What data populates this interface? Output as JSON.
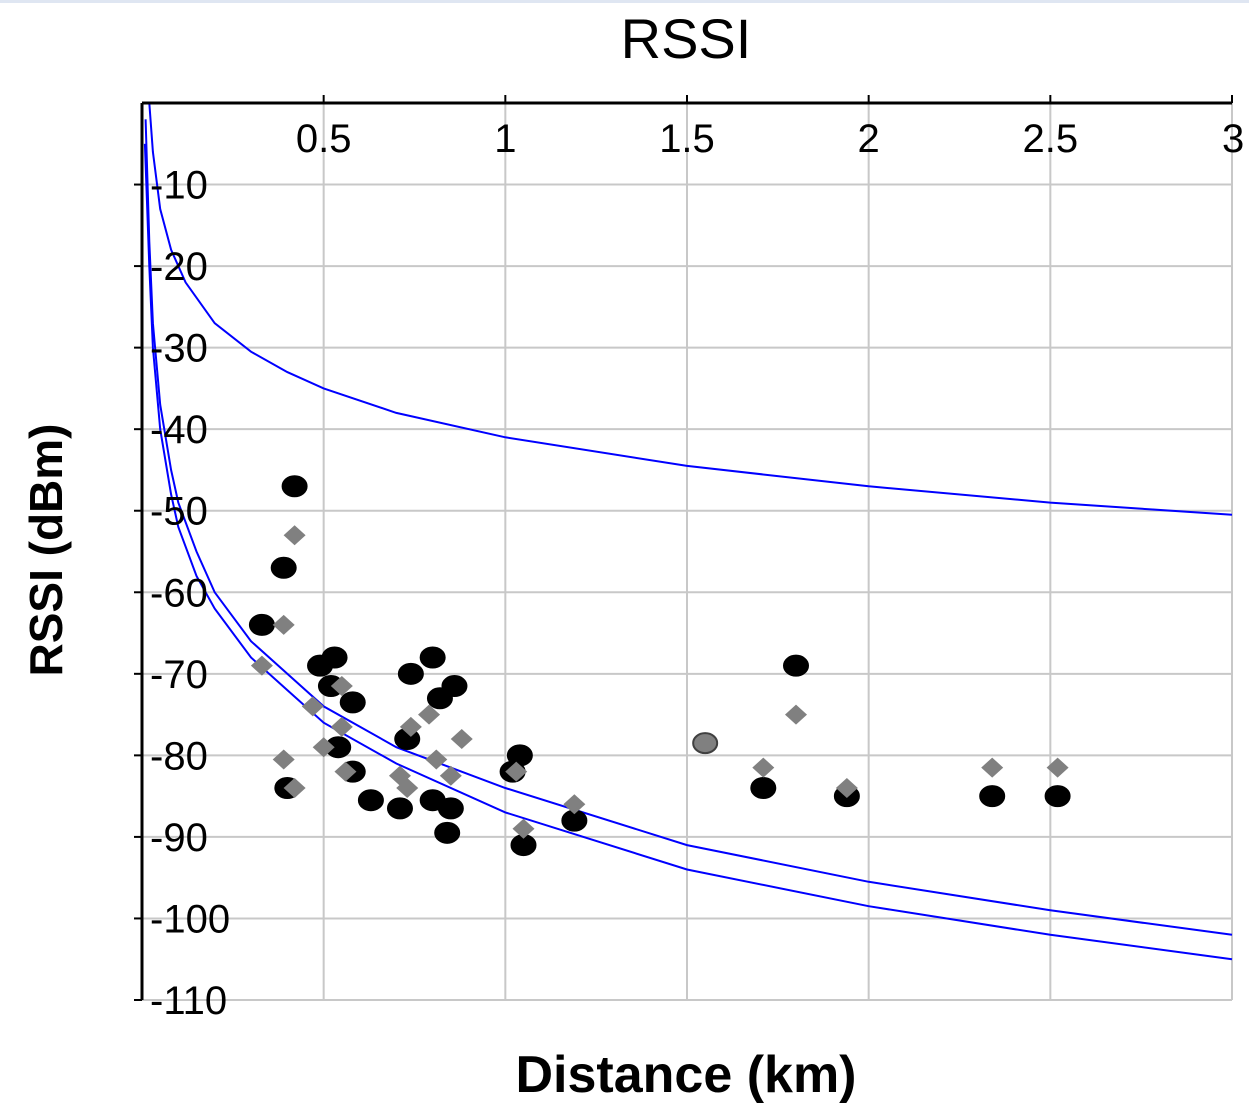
{
  "chart_data": {
    "type": "scatter",
    "title": "RSSI",
    "xlabel": "Distance (km)",
    "ylabel": "RSSI (dBm)",
    "xlim": [
      0,
      3
    ],
    "ylim": [
      -110,
      0
    ],
    "x_ticks": [
      "0.5",
      "1",
      "1.5",
      "2",
      "2.5",
      "3"
    ],
    "y_ticks": [
      "-10",
      "-20",
      "-30",
      "-40",
      "-50",
      "-60",
      "-70",
      "-80",
      "-90",
      "-100",
      "-110"
    ],
    "x_axis_position": "top",
    "grid": true,
    "colors": {
      "measured_a": "#000000",
      "measured_b": "#808080",
      "curves": "#0000ff",
      "grid": "#c8c8c8"
    },
    "series": [
      {
        "marker": "circle",
        "color": "#000000",
        "points": [
          [
            0.42,
            -47
          ],
          [
            0.39,
            -57
          ],
          [
            0.33,
            -64
          ],
          [
            0.53,
            -68
          ],
          [
            0.49,
            -69
          ],
          [
            0.52,
            -71.5
          ],
          [
            0.58,
            -73.5
          ],
          [
            0.74,
            -70
          ],
          [
            0.8,
            -68
          ],
          [
            0.82,
            -73
          ],
          [
            0.86,
            -71.5
          ],
          [
            0.73,
            -78
          ],
          [
            0.54,
            -79
          ],
          [
            0.58,
            -82
          ],
          [
            0.63,
            -85.5
          ],
          [
            0.71,
            -86.5
          ],
          [
            0.8,
            -85.5
          ],
          [
            0.85,
            -86.5
          ],
          [
            0.84,
            -89.5
          ],
          [
            0.4,
            -84
          ],
          [
            1.04,
            -80
          ],
          [
            1.02,
            -82
          ],
          [
            1.05,
            -91
          ],
          [
            1.19,
            -88
          ],
          [
            1.8,
            -69
          ],
          [
            1.71,
            -84
          ],
          [
            1.94,
            -85
          ],
          [
            2.34,
            -85
          ],
          [
            2.52,
            -85
          ]
        ]
      },
      {
        "marker": "diamond",
        "color": "#808080",
        "points": [
          [
            0.42,
            -53
          ],
          [
            0.39,
            -64
          ],
          [
            0.33,
            -69
          ],
          [
            0.55,
            -71.5
          ],
          [
            0.47,
            -74
          ],
          [
            0.55,
            -76.5
          ],
          [
            0.74,
            -76.5
          ],
          [
            0.79,
            -75
          ],
          [
            0.88,
            -78
          ],
          [
            0.81,
            -80.5
          ],
          [
            0.39,
            -80.5
          ],
          [
            0.5,
            -79
          ],
          [
            0.56,
            -82
          ],
          [
            0.42,
            -84
          ],
          [
            0.71,
            -82.5
          ],
          [
            0.73,
            -84
          ],
          [
            0.85,
            -82.5
          ],
          [
            1.03,
            -82
          ],
          [
            1.05,
            -89
          ],
          [
            1.19,
            -86
          ],
          [
            1.8,
            -75
          ],
          [
            1.71,
            -81.5
          ],
          [
            1.94,
            -84
          ],
          [
            2.34,
            -81.5
          ],
          [
            2.52,
            -81.5
          ]
        ]
      },
      {
        "marker": "circle",
        "color": "#808080",
        "points": [
          [
            1.55,
            -78.5
          ]
        ]
      },
      {
        "type": "line",
        "color": "#0000ff",
        "points": [
          [
            0.02,
            0
          ],
          [
            0.03,
            -6
          ],
          [
            0.05,
            -13
          ],
          [
            0.08,
            -18
          ],
          [
            0.12,
            -22
          ],
          [
            0.2,
            -27
          ],
          [
            0.3,
            -30.5
          ],
          [
            0.4,
            -33
          ],
          [
            0.5,
            -35
          ],
          [
            0.7,
            -38
          ],
          [
            1.0,
            -41
          ],
          [
            1.5,
            -44.5
          ],
          [
            2.0,
            -47
          ],
          [
            2.5,
            -49
          ],
          [
            3.0,
            -50.5
          ]
        ]
      },
      {
        "type": "line",
        "color": "#0000ff",
        "points": [
          [
            0.01,
            -2
          ],
          [
            0.02,
            -17
          ],
          [
            0.03,
            -27
          ],
          [
            0.05,
            -37
          ],
          [
            0.08,
            -45
          ],
          [
            0.1,
            -49
          ],
          [
            0.15,
            -55
          ],
          [
            0.2,
            -60
          ],
          [
            0.3,
            -66
          ],
          [
            0.4,
            -70
          ],
          [
            0.5,
            -74
          ],
          [
            0.7,
            -79
          ],
          [
            1.0,
            -84
          ],
          [
            1.5,
            -91
          ],
          [
            2.0,
            -95.5
          ],
          [
            2.5,
            -99
          ],
          [
            3.0,
            -102
          ]
        ]
      },
      {
        "type": "line",
        "color": "#0000ff",
        "points": [
          [
            0.008,
            -5
          ],
          [
            0.02,
            -20
          ],
          [
            0.03,
            -30
          ],
          [
            0.05,
            -40
          ],
          [
            0.08,
            -48
          ],
          [
            0.1,
            -52
          ],
          [
            0.15,
            -58
          ],
          [
            0.2,
            -62
          ],
          [
            0.3,
            -68
          ],
          [
            0.4,
            -72
          ],
          [
            0.5,
            -76
          ],
          [
            0.7,
            -81
          ],
          [
            1.0,
            -87
          ],
          [
            1.5,
            -94
          ],
          [
            2.0,
            -98.5
          ],
          [
            2.5,
            -102
          ],
          [
            3.0,
            -105
          ]
        ]
      }
    ]
  }
}
